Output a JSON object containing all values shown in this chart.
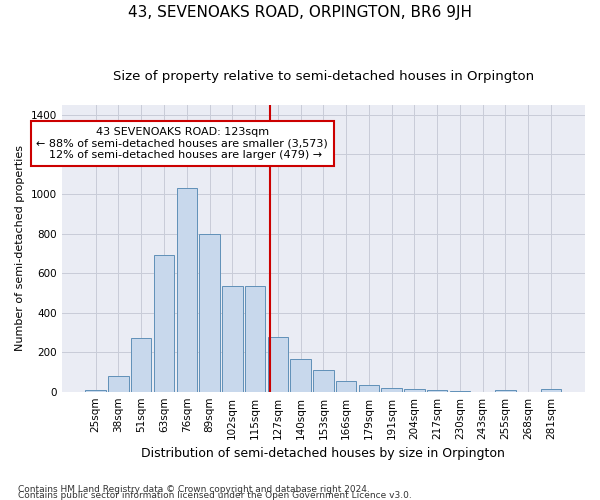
{
  "title": "43, SEVENOAKS ROAD, ORPINGTON, BR6 9JH",
  "subtitle": "Size of property relative to semi-detached houses in Orpington",
  "xlabel": "Distribution of semi-detached houses by size in Orpington",
  "ylabel": "Number of semi-detached properties",
  "footer_line1": "Contains HM Land Registry data © Crown copyright and database right 2024.",
  "footer_line2": "Contains public sector information licensed under the Open Government Licence v3.0.",
  "bin_labels": [
    "25sqm",
    "38sqm",
    "51sqm",
    "63sqm",
    "76sqm",
    "89sqm",
    "102sqm",
    "115sqm",
    "127sqm",
    "140sqm",
    "153sqm",
    "166sqm",
    "179sqm",
    "191sqm",
    "204sqm",
    "217sqm",
    "230sqm",
    "243sqm",
    "255sqm",
    "268sqm",
    "281sqm"
  ],
  "bar_values": [
    10,
    80,
    270,
    690,
    1030,
    800,
    535,
    535,
    275,
    165,
    110,
    55,
    35,
    20,
    15,
    10,
    5,
    0,
    10,
    0,
    15
  ],
  "bar_color": "#c8d8ec",
  "bar_edge_color": "#6090b8",
  "grid_color": "#c8ccd8",
  "background_color": "#eaecf4",
  "property_label": "43 SEVENOAKS ROAD: 123sqm",
  "pct_smaller": 88,
  "n_smaller": 3573,
  "pct_larger": 12,
  "n_larger": 479,
  "vline_color": "#cc0000",
  "annotation_box_edgecolor": "#cc0000",
  "ylim": [
    0,
    1450
  ],
  "yticks": [
    0,
    200,
    400,
    600,
    800,
    1000,
    1200,
    1400
  ],
  "title_fontsize": 11,
  "subtitle_fontsize": 9.5,
  "xlabel_fontsize": 9,
  "ylabel_fontsize": 8,
  "tick_fontsize": 7.5,
  "annotation_fontsize": 8,
  "footer_fontsize": 6.5,
  "vline_x": 7.667
}
